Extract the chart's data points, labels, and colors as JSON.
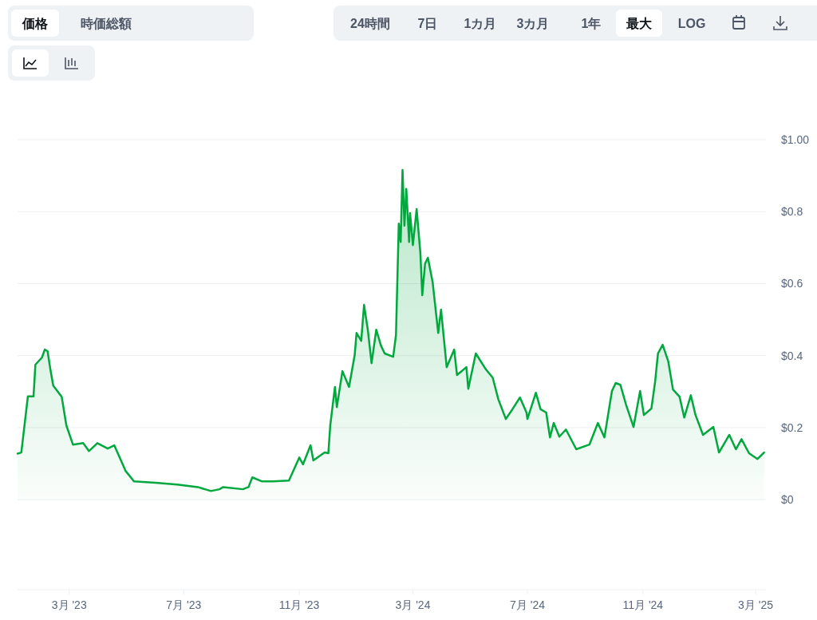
{
  "chart_data": {
    "type": "area",
    "annotations": [
      "価格",
      "時価総額",
      "24時間",
      "7日",
      "1カ月",
      "3カ月",
      "1年",
      "最大",
      "LOG"
    ],
    "xlim": [
      "2023-01-05",
      "2025-03-12"
    ],
    "xticks": [
      {
        "value": "2023-03-01",
        "label": "3月 '23"
      },
      {
        "value": "2023-07-01",
        "label": "7月 '23"
      },
      {
        "value": "2023-11-01",
        "label": "11月 '23"
      },
      {
        "value": "2024-03-01",
        "label": "3月 '24"
      },
      {
        "value": "2024-07-01",
        "label": "7月 '24"
      },
      {
        "value": "2024-11-01",
        "label": "11月 '24"
      },
      {
        "value": "2025-03-01",
        "label": "3月 '25"
      }
    ],
    "ylim": [
      -0.25,
      1.0
    ],
    "yticks": [
      {
        "value": 0,
        "label": "$0"
      },
      {
        "value": 0.2,
        "label": "$0.2"
      },
      {
        "value": 0.4,
        "label": "$0.4"
      },
      {
        "value": 0.6,
        "label": "$0.6"
      },
      {
        "value": 0.8,
        "label": "$0.8"
      },
      {
        "value": 1.0,
        "label": "$1.00"
      }
    ],
    "grid": "y",
    "series": [
      {
        "color": "#00a83e",
        "x": [
          "2023-01-05",
          "2023-01-09",
          "2023-01-16",
          "2023-01-22",
          "2023-01-24",
          "2023-01-31",
          "2023-02-03",
          "2023-02-06",
          "2023-02-09",
          "2023-02-12",
          "2023-02-21",
          "2023-02-26",
          "2023-03-05",
          "2023-03-16",
          "2023-03-22",
          "2023-03-31",
          "2023-04-11",
          "2023-04-18",
          "2023-04-30",
          "2023-05-09",
          "2023-06-01",
          "2023-06-24",
          "2023-07-16",
          "2023-07-30",
          "2023-08-08",
          "2023-08-12",
          "2023-09-02",
          "2023-09-08",
          "2023-09-12",
          "2023-09-22",
          "2023-10-04",
          "2023-10-21",
          "2023-11-01",
          "2023-11-05",
          "2023-11-13",
          "2023-11-16",
          "2023-11-28",
          "2023-12-02",
          "2023-12-04",
          "2023-12-09",
          "2023-12-11",
          "2023-12-17",
          "2023-12-24",
          "2023-12-30",
          "2024-01-01",
          "2024-01-06",
          "2024-01-09",
          "2024-01-13",
          "2024-01-17",
          "2024-01-22",
          "2024-01-27",
          "2024-01-31",
          "2024-02-09",
          "2024-02-12",
          "2024-02-15",
          "2024-02-17",
          "2024-02-19",
          "2024-02-21",
          "2024-02-23",
          "2024-02-26",
          "2024-02-27",
          "2024-03-01",
          "2024-03-05",
          "2024-03-09",
          "2024-03-11",
          "2024-03-14",
          "2024-03-17",
          "2024-03-22",
          "2024-03-28",
          "2024-03-31",
          "2024-04-06",
          "2024-04-14",
          "2024-04-17",
          "2024-04-27",
          "2024-04-29",
          "2024-05-07",
          "2024-05-18",
          "2024-05-25",
          "2024-05-31",
          "2024-06-08",
          "2024-06-15",
          "2024-06-23",
          "2024-06-30",
          "2024-07-01",
          "2024-07-10",
          "2024-07-15",
          "2024-07-21",
          "2024-07-25",
          "2024-07-29",
          "2024-08-04",
          "2024-08-11",
          "2024-08-22",
          "2024-09-05",
          "2024-09-14",
          "2024-09-21",
          "2024-09-29",
          "2024-10-03",
          "2024-10-08",
          "2024-10-14",
          "2024-10-22",
          "2024-10-29",
          "2024-11-02",
          "2024-11-10",
          "2024-11-14",
          "2024-11-17",
          "2024-11-22",
          "2024-11-28",
          "2024-12-03",
          "2024-12-10",
          "2024-12-15",
          "2024-12-22",
          "2024-12-27",
          "2025-01-04",
          "2025-01-15",
          "2025-01-21",
          "2025-02-01",
          "2025-02-08",
          "2025-02-14",
          "2025-02-22",
          "2025-03-03",
          "2025-03-10"
        ],
        "values": [
          0.128,
          0.131,
          0.287,
          0.287,
          0.375,
          0.395,
          0.417,
          0.412,
          0.361,
          0.317,
          0.286,
          0.206,
          0.153,
          0.157,
          0.135,
          0.157,
          0.142,
          0.151,
          0.08,
          0.051,
          0.047,
          0.042,
          0.035,
          0.024,
          0.029,
          0.035,
          0.029,
          0.035,
          0.062,
          0.051,
          0.051,
          0.053,
          0.117,
          0.098,
          0.151,
          0.109,
          0.131,
          0.129,
          0.206,
          0.313,
          0.257,
          0.357,
          0.313,
          0.401,
          0.463,
          0.441,
          0.541,
          0.472,
          0.379,
          0.472,
          0.428,
          0.406,
          0.397,
          0.457,
          0.767,
          0.716,
          0.916,
          0.761,
          0.863,
          0.716,
          0.796,
          0.707,
          0.807,
          0.685,
          0.568,
          0.656,
          0.672,
          0.605,
          0.463,
          0.528,
          0.368,
          0.417,
          0.346,
          0.368,
          0.308,
          0.406,
          0.361,
          0.339,
          0.279,
          0.224,
          0.251,
          0.284,
          0.242,
          0.224,
          0.297,
          0.251,
          0.242,
          0.173,
          0.213,
          0.175,
          0.195,
          0.14,
          0.153,
          0.213,
          0.173,
          0.302,
          0.324,
          0.319,
          0.264,
          0.202,
          0.302,
          0.235,
          0.253,
          0.328,
          0.406,
          0.43,
          0.384,
          0.306,
          0.286,
          0.228,
          0.29,
          0.235,
          0.18,
          0.202,
          0.131,
          0.18,
          0.14,
          0.168,
          0.129,
          0.113,
          0.131
        ]
      }
    ]
  }
}
